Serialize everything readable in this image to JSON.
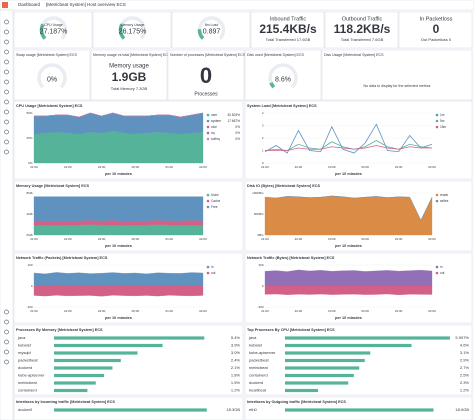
{
  "header": {
    "breadcrumb": "Dashboard",
    "title": "[Metricbeat System] Host overview ECS"
  },
  "gauges": [
    {
      "label": "CPU Usage",
      "value": 27.187,
      "value_label": "27.187%",
      "range": [
        0,
        100
      ]
    },
    {
      "label": "Memory Usage",
      "value": 26.175,
      "value_label": "26.175%",
      "range": [
        0,
        100
      ]
    },
    {
      "label": "5m Load",
      "value": 0.897,
      "range": [
        0,
        5
      ]
    }
  ],
  "metrics": [
    {
      "title": "Inbound Traffic",
      "value": "215.4KB/s",
      "detail": "Total Transferred 17.6GB"
    },
    {
      "title": "Outbound Traffic",
      "value": "118.2KB/s",
      "detail": "Total Transferred 7.6GB"
    },
    {
      "title": "In Packetloss",
      "value": "0",
      "detail": "Out Packetloss 0"
    }
  ],
  "swap": {
    "title": "Swap usage [Metricbeat System] ECS",
    "value": 0,
    "value_label": "0%",
    "range": [
      0,
      100
    ]
  },
  "memory_total": {
    "title": "Memory usage vs total [Metricbeat System] ECS",
    "label": "Memory usage",
    "value": "1.9GB",
    "detail": "Total Memory 7.3GB"
  },
  "processes": {
    "title": "Number of processes [Metricbeat System] ECS",
    "value": "0",
    "label": "Processes"
  },
  "disk_used": {
    "title": "Disk used [Metricbeat System] ECS",
    "value": 8.6,
    "value_label": "8.6%",
    "range": [
      0,
      100
    ]
  },
  "disk_usage": {
    "title": "Disk Usage [Metricbeat System] ECS",
    "message": "No data to display for the selected metrics"
  },
  "charts": [
    {
      "type": "stacked-area",
      "title": "CPU Usage [Metricbeat System] ECS",
      "x_label": "per 10 minutes",
      "xticks": [
        "21:00",
        "22:00",
        "23:00",
        "00:00",
        "01:00",
        "02:00"
      ],
      "ylim": [
        0,
        50
      ],
      "yticks": [
        {
          "value": 0,
          "label": "0%"
        },
        {
          "value": 25,
          "label": "25%"
        },
        {
          "value": 50,
          "label": "50%"
        }
      ],
      "series": [
        {
          "name": "user",
          "legend_value": "30.503%",
          "color": "#54b399",
          "values": [
            29,
            30,
            31,
            30,
            29,
            31,
            30,
            32,
            30,
            29,
            30,
            31,
            30,
            29,
            30,
            31
          ]
        },
        {
          "name": "system",
          "legend_value": "17.667%",
          "color": "#6092c0",
          "values": [
            18,
            17,
            17,
            18,
            17,
            19,
            17,
            18,
            17,
            18,
            17,
            17,
            18,
            17,
            18,
            19
          ]
        },
        {
          "name": "nice",
          "legend_value": "0%",
          "color": "#d36086",
          "values": [
            0,
            0,
            0,
            0,
            0,
            0,
            0,
            0,
            0,
            0,
            0,
            0,
            0,
            0,
            0,
            0
          ]
        },
        {
          "name": "irq",
          "legend_value": "0%",
          "color": "#9170b8",
          "values": [
            0,
            0,
            0,
            0,
            0,
            0,
            0,
            0,
            0,
            0,
            0,
            0,
            0,
            0,
            0,
            0
          ]
        },
        {
          "name": "softirq",
          "legend_value": "0%",
          "color": "#ca8eae",
          "values": [
            0,
            0,
            0,
            0,
            0,
            0,
            0,
            0,
            0,
            0,
            0,
            0,
            0,
            0,
            0,
            0
          ]
        }
      ]
    },
    {
      "type": "line",
      "title": "System Load [Metricbeat System] ECS",
      "x_label": "per 10 minutes",
      "xticks": [
        "21:00",
        "22:00",
        "23:00",
        "00:00",
        "01:00",
        "02:00"
      ],
      "ylim": [
        0,
        4
      ],
      "yticks": [
        0,
        1,
        2,
        3,
        4
      ],
      "series": [
        {
          "name": "1m",
          "color": "#6092c0",
          "values": [
            0.9,
            1.4,
            0.8,
            2.6,
            1.0,
            0.9,
            2.9,
            1.1,
            0.8,
            1.6,
            3.1,
            1.0,
            0.9,
            2.2,
            1.2,
            1.5
          ]
        },
        {
          "name": "5m",
          "color": "#54b399",
          "values": [
            1.0,
            1.1,
            1.0,
            1.5,
            1.2,
            1.1,
            1.7,
            1.3,
            1.1,
            1.3,
            1.8,
            1.3,
            1.1,
            1.5,
            1.3,
            1.2
          ]
        },
        {
          "name": "15m",
          "color": "#d36086",
          "values": [
            1.0,
            1.0,
            1.0,
            1.2,
            1.1,
            1.1,
            1.3,
            1.2,
            1.1,
            1.2,
            1.4,
            1.2,
            1.1,
            1.3,
            1.2,
            1.2
          ]
        }
      ]
    },
    {
      "type": "stacked-area",
      "title": "Memory Usage [Metricbeat System] ECS",
      "x_label": "per 10 minutes",
      "xticks": [
        "21:00",
        "22:00",
        "23:00",
        "00:00",
        "01:00",
        "02:00"
      ],
      "ylim": [
        0,
        8
      ],
      "yticks": [
        {
          "value": 0,
          "label": "0GB"
        },
        {
          "value": 4,
          "label": "4GB"
        },
        {
          "value": 8,
          "label": "8GB"
        }
      ],
      "series": [
        {
          "name": "Used",
          "color": "#54b399",
          "values": [
            1.9,
            1.9,
            1.8,
            1.9,
            1.9,
            2.0,
            1.9,
            1.9,
            1.8,
            1.9,
            1.9,
            2.0,
            1.9,
            1.9,
            1.9,
            1.9
          ]
        },
        {
          "name": "Cache",
          "color": "#d36086",
          "values": [
            0.8,
            0.8,
            0.9,
            0.8,
            0.8,
            0.8,
            0.8,
            0.9,
            0.8,
            0.8,
            0.8,
            0.8,
            0.8,
            0.8,
            0.9,
            0.8
          ]
        },
        {
          "name": "Free",
          "color": "#6092c0",
          "values": [
            4.6,
            4.6,
            4.6,
            4.6,
            4.6,
            4.5,
            4.6,
            4.5,
            4.7,
            4.6,
            4.6,
            4.5,
            4.6,
            4.6,
            4.5,
            4.6
          ]
        }
      ]
    },
    {
      "type": "stacked-area",
      "title": "Disk IO (Bytes) [Metricbeat System] ECS",
      "x_label": "per 10 minutes",
      "xticks": [
        "21:00",
        "22:00",
        "23:00",
        "00:00",
        "01:00",
        "02:00"
      ],
      "ylim": [
        0,
        100
      ],
      "yticks": [
        {
          "value": 0,
          "label": "0B/s"
        },
        {
          "value": 50,
          "label": "50KB/s"
        },
        {
          "value": 100,
          "label": "100KB/s"
        }
      ],
      "series": [
        {
          "name": "reads",
          "color": "#da8b45",
          "values": [
            90,
            88,
            92,
            91,
            89,
            90,
            93,
            91,
            88,
            90,
            92,
            89,
            91,
            90,
            35,
            90
          ]
        },
        {
          "name": "writes",
          "color": "#6092c0",
          "values": [
            0,
            0,
            0,
            0,
            0,
            0,
            0,
            0,
            0,
            0,
            0,
            0,
            0,
            0,
            0,
            0
          ]
        }
      ]
    },
    {
      "type": "area",
      "title": "Network Traffic (Packets) [Metricbeat System] ECS",
      "x_label": "per 10 minutes",
      "xticks": [
        "21:00",
        "22:00",
        "23:00",
        "00:00",
        "01:00",
        "02:00"
      ],
      "ylim": [
        -100,
        100
      ],
      "yticks": [
        -100,
        0,
        100
      ],
      "series": [
        {
          "name": "in",
          "color": "#6092c0",
          "values": [
            62,
            58,
            65,
            60,
            63,
            59,
            61,
            64,
            60,
            62,
            58,
            63,
            61,
            60,
            64,
            62
          ]
        },
        {
          "name": "out",
          "color": "#d36086",
          "values": [
            -45,
            -48,
            -44,
            -47,
            -46,
            -45,
            -49,
            -44,
            -46,
            -47,
            -45,
            -48,
            -44,
            -46,
            -47,
            -45
          ]
        }
      ]
    },
    {
      "type": "area",
      "title": "Network Traffic (Bytes) [Metricbeat System] ECS",
      "x_label": "per 10 minutes",
      "xticks": [
        "21:00",
        "22:00",
        "23:00",
        "00:00",
        "01:00",
        "02:00"
      ],
      "ylim": [
        -300,
        300
      ],
      "yticks": [
        -300,
        0,
        300
      ],
      "series": [
        {
          "name": "in",
          "color": "#9170b8",
          "values": [
            210,
            220,
            205,
            230,
            215,
            225,
            210,
            218,
            222,
            208,
            216,
            224,
            212,
            219,
            226,
            215
          ]
        },
        {
          "name": "out",
          "color": "#d36086",
          "values": [
            -120,
            -115,
            -125,
            -118,
            -122,
            -116,
            -124,
            -119,
            -117,
            -123,
            -121,
            -114,
            -126,
            -118,
            -120,
            -122
          ]
        }
      ]
    }
  ],
  "lists": [
    {
      "title": "Processes By Memory [Metricbeat System] ECS",
      "xlim": [
        0,
        6
      ],
      "items": [
        {
          "name": "java",
          "value": 5.4,
          "value_label": "5.4%"
        },
        {
          "name": "kubelet",
          "value": 3.9,
          "value_label": "3.9%"
        },
        {
          "name": "mysqld",
          "value": 3.0,
          "value_label": "3.0%"
        },
        {
          "name": "packetbeat",
          "value": 2.4,
          "value_label": "2.4%"
        },
        {
          "name": "dockerd",
          "value": 2.1,
          "value_label": "2.1%"
        },
        {
          "name": "kube-apiserver",
          "value": 1.8,
          "value_label": "1.8%"
        },
        {
          "name": "metricbeat",
          "value": 1.5,
          "value_label": "1.5%"
        },
        {
          "name": "containerd",
          "value": 1.2,
          "value_label": "1.2%"
        }
      ]
    },
    {
      "title": "Top Processes By CPU [Metricbeat System] ECS",
      "xlim": [
        0,
        6
      ],
      "items": [
        {
          "name": "java",
          "value": 5.997,
          "value_label": "5.997%"
        },
        {
          "name": "kubelet",
          "value": 4.6,
          "value_label": "4.6%"
        },
        {
          "name": "kube-apiserver",
          "value": 3.1,
          "value_label": "3.1%"
        },
        {
          "name": "packetbeat",
          "value": 2.9,
          "value_label": "2.9%"
        },
        {
          "name": "metricbeat",
          "value": 2.7,
          "value_label": "2.7%"
        },
        {
          "name": "containerd",
          "value": 2.5,
          "value_label": "2.5%"
        },
        {
          "name": "dockerd",
          "value": 2.3,
          "value_label": "2.3%"
        },
        {
          "name": "heartbeat",
          "value": 1.2,
          "value_label": "1.2%"
        }
      ]
    },
    {
      "title": "Interfaces by Incoming traffic [Metricbeat System] ECS",
      "xlim": [
        0,
        20
      ],
      "items": [
        {
          "name": "docker0",
          "value": 18.3,
          "value_label": "18.3GB"
        }
      ]
    },
    {
      "title": "Interfaces by Outgoing traffic [Metricbeat System] ECS",
      "xlim": [
        0,
        20
      ],
      "items": [
        {
          "name": "eth0",
          "value": 18.0,
          "value_label": "18.0GB"
        }
      ]
    }
  ]
}
